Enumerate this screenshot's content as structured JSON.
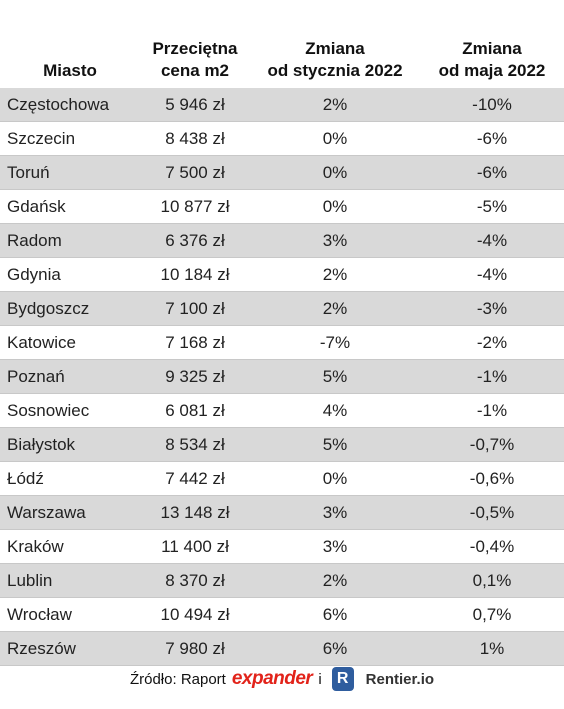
{
  "table": {
    "header": [
      [
        "Miasto"
      ],
      [
        "Przeciętna",
        "cena m2"
      ],
      [
        "Zmiana",
        "od stycznia 2022"
      ],
      [
        "Zmiana",
        "od maja 2022"
      ]
    ],
    "rows": [
      [
        "Częstochowa",
        "5 946 zł",
        "2%",
        "-10%"
      ],
      [
        "Szczecin",
        "8 438 zł",
        "0%",
        "-6%"
      ],
      [
        "Toruń",
        "7 500 zł",
        "0%",
        "-6%"
      ],
      [
        "Gdańsk",
        "10 877 zł",
        "0%",
        "-5%"
      ],
      [
        "Radom",
        "6 376 zł",
        "3%",
        "-4%"
      ],
      [
        "Gdynia",
        "10 184 zł",
        "2%",
        "-4%"
      ],
      [
        "Bydgoszcz",
        "7 100 zł",
        "2%",
        "-3%"
      ],
      [
        "Katowice",
        "7 168 zł",
        "-7%",
        "-2%"
      ],
      [
        "Poznań",
        "9 325 zł",
        "5%",
        "-1%"
      ],
      [
        "Sosnowiec",
        "6 081 zł",
        "4%",
        "-1%"
      ],
      [
        "Białystok",
        "8 534 zł",
        "5%",
        "-0,7%"
      ],
      [
        "Łódź",
        "7 442 zł",
        "0%",
        "-0,6%"
      ],
      [
        "Warszawa",
        "13 148 zł",
        "3%",
        "-0,5%"
      ],
      [
        "Kraków",
        "11 400 zł",
        "3%",
        "-0,4%"
      ],
      [
        "Lublin",
        "8 370 zł",
        "2%",
        "0,1%"
      ],
      [
        "Wrocław",
        "10 494 zł",
        "6%",
        "0,7%"
      ],
      [
        "Rzeszów",
        "7 980 zł",
        "6%",
        "1%"
      ]
    ]
  },
  "footer": {
    "source": "Źródło: Raport",
    "logo1": "expander",
    "joiner": "i",
    "logo2_icon": "R",
    "logo2": "Rentier.io"
  }
}
